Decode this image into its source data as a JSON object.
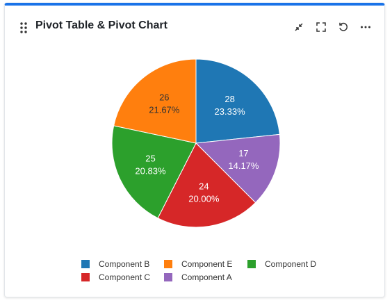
{
  "card": {
    "title": "Pivot Table & Pivot Chart"
  },
  "toolbar": [
    {
      "name": "collapse-icon"
    },
    {
      "name": "fullscreen-icon"
    },
    {
      "name": "refresh-icon"
    },
    {
      "name": "more-icon"
    }
  ],
  "chart_data": {
    "type": "pie",
    "title": "",
    "slices": [
      {
        "label": "Component B",
        "value": 28,
        "percent": "23.33%",
        "color": "#1f77b4"
      },
      {
        "label": "Component A",
        "value": 17,
        "percent": "14.17%",
        "color": "#9467bd"
      },
      {
        "label": "Component C",
        "value": 24,
        "percent": "20.00%",
        "color": "#d62728"
      },
      {
        "label": "Component D",
        "value": 25,
        "percent": "20.83%",
        "color": "#2ca02c"
      },
      {
        "label": "Component E",
        "value": 26,
        "percent": "21.67%",
        "color": "#ff7f0e"
      }
    ],
    "legend_order": [
      "Component B",
      "Component E",
      "Component D",
      "Component C",
      "Component A"
    ],
    "legend_position": "bottom"
  }
}
